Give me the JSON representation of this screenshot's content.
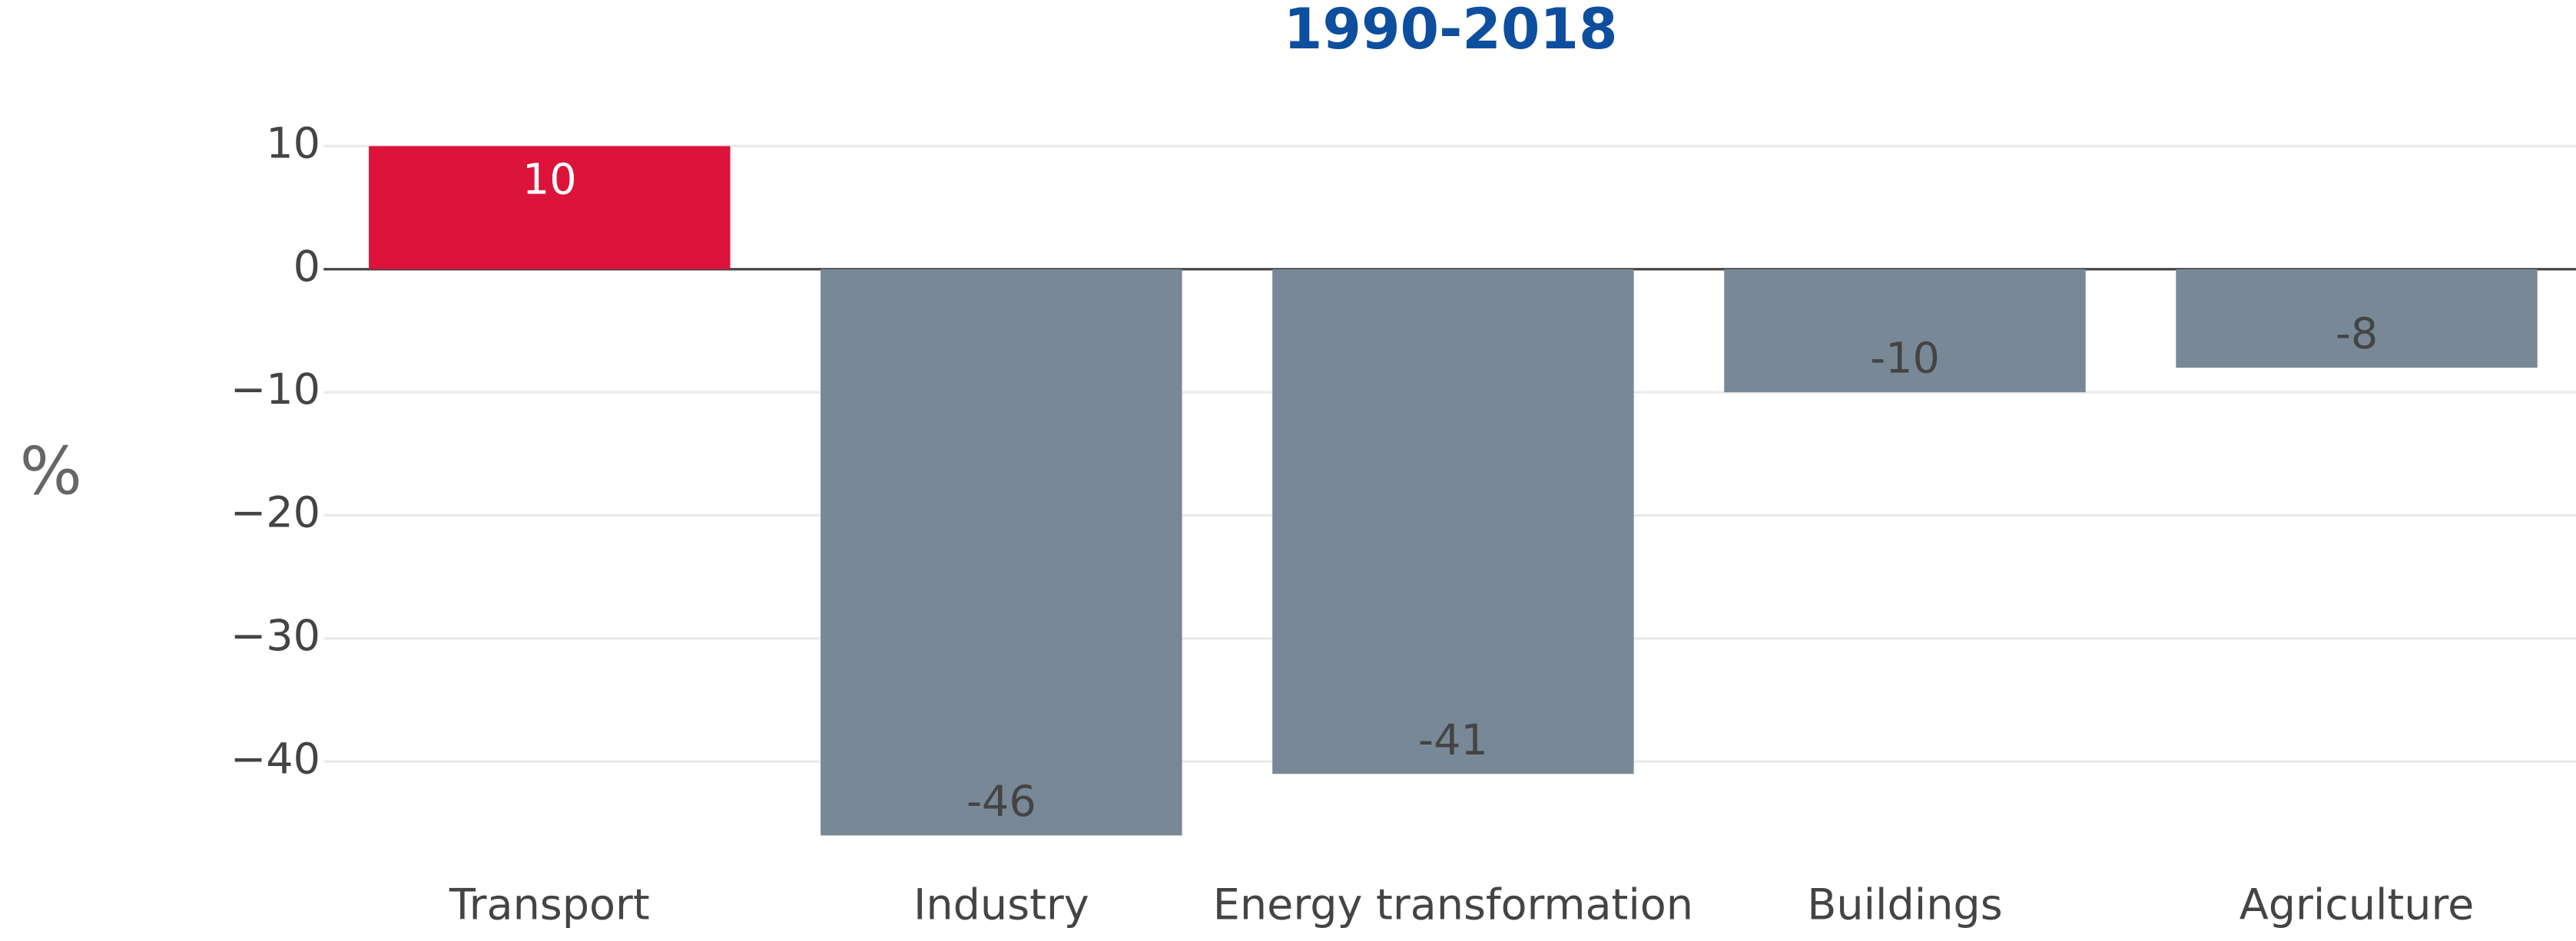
{
  "chart_data": {
    "type": "bar",
    "title": "1990-2018",
    "ylabel": "%",
    "categories": [
      "Transport",
      "Industry",
      "Energy transformation",
      "Buildings",
      "Agriculture"
    ],
    "values": [
      10,
      -46,
      -41,
      -10,
      -8
    ],
    "colors": [
      "#dc143c",
      "#788896",
      "#788896",
      "#788896",
      "#788896"
    ],
    "ylim": [
      -48,
      13
    ],
    "yticks": [
      {
        "value": -40,
        "label": "−40"
      },
      {
        "value": -30,
        "label": "−30"
      },
      {
        "value": -20,
        "label": "−20"
      },
      {
        "value": -10,
        "label": "−10"
      },
      0,
      10
    ],
    "grid": true
  }
}
